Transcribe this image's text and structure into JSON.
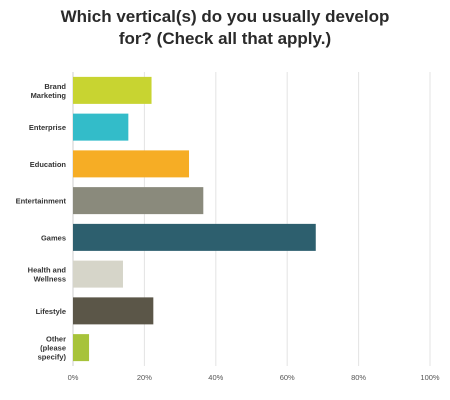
{
  "chart_data": {
    "type": "bar",
    "orientation": "horizontal",
    "title_lines": [
      "Which vertical(s) do you usually develop",
      "for? (Check all that apply.)"
    ],
    "categories": [
      [
        "Brand",
        "Marketing"
      ],
      [
        "Enterprise"
      ],
      [
        "Education"
      ],
      [
        "Entertainment"
      ],
      [
        "Games"
      ],
      [
        "Health and",
        "Wellness"
      ],
      [
        "Lifestyle"
      ],
      [
        "Other",
        "(please",
        "specify)"
      ]
    ],
    "values": [
      22,
      15.5,
      32.5,
      36.5,
      68,
      14,
      22.5,
      4.5
    ],
    "colors": [
      "#c8d431",
      "#33bcc9",
      "#f6ad25",
      "#8a8a7c",
      "#2d5f6e",
      "#d6d5c9",
      "#5b5648",
      "#a7c33a"
    ],
    "xlim": [
      0,
      100
    ],
    "x_ticks": [
      "0%",
      "20%",
      "40%",
      "60%",
      "80%",
      "100%"
    ],
    "grid": true,
    "legend": "none"
  }
}
